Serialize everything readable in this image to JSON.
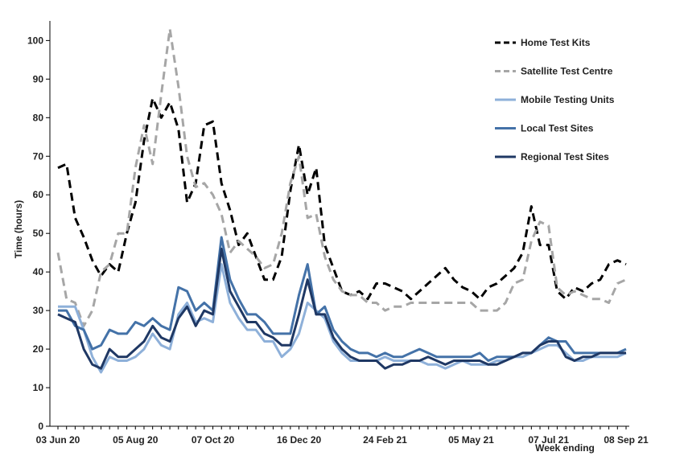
{
  "chart_data": {
    "type": "line",
    "ylabel": "Time (hours)",
    "xlabel": "Week ending",
    "ylim": [
      0,
      103
    ],
    "yticks": [
      0,
      10,
      20,
      30,
      40,
      50,
      60,
      70,
      80,
      90,
      100
    ],
    "x_tick_labels": [
      {
        "index": 0,
        "label": "03 Jun 20"
      },
      {
        "index": 9,
        "label": "05 Aug 20"
      },
      {
        "index": 18,
        "label": "07 Oct 20"
      },
      {
        "index": 28,
        "label": "16 Dec 20"
      },
      {
        "index": 38,
        "label": "24 Feb 21"
      },
      {
        "index": 48,
        "label": "05 May 21"
      },
      {
        "index": 57,
        "label": "07 Jul 21"
      },
      {
        "index": 66,
        "label": "08 Sep 21"
      }
    ],
    "n_points": 67,
    "legend_position": "top-right",
    "grid": false,
    "series": [
      {
        "name": "Home Test Kits",
        "color": "#000000",
        "dash": "dashed",
        "values": [
          67,
          68,
          54,
          49,
          43,
          39,
          42,
          40,
          50,
          58,
          74,
          85,
          80,
          84,
          77,
          58,
          63,
          78,
          79,
          63,
          56,
          47,
          50,
          44,
          38,
          38,
          44,
          61,
          73,
          60,
          67,
          47,
          41,
          35,
          34,
          35,
          33,
          37,
          37,
          36,
          35,
          33,
          35,
          37,
          39,
          41,
          38,
          36,
          35,
          33,
          36,
          37,
          39,
          41,
          45,
          57,
          47,
          47,
          35,
          33,
          36,
          35,
          37,
          38,
          42,
          43,
          42
        ]
      },
      {
        "name": "Satellite Test Centre",
        "color": "#a6a6a6",
        "dash": "dashed",
        "values": [
          45,
          33,
          32,
          26,
          30,
          40,
          42,
          50,
          50,
          67,
          78,
          68,
          86,
          103,
          88,
          70,
          62,
          63,
          60,
          55,
          45,
          48,
          46,
          44,
          41,
          42,
          50,
          63,
          70,
          54,
          55,
          44,
          38,
          35,
          34,
          34,
          32,
          32,
          30,
          31,
          31,
          32,
          32,
          32,
          32,
          32,
          32,
          32,
          32,
          30,
          30,
          30,
          32,
          37,
          38,
          48,
          53,
          52,
          36,
          34,
          35,
          34,
          33,
          33,
          32,
          37,
          38
        ]
      },
      {
        "name": "Mobile Testing Units",
        "color": "#8eb0d9",
        "dash": "solid",
        "values": [
          31,
          31,
          31,
          25,
          18,
          14,
          18,
          17,
          17,
          18,
          20,
          24,
          21,
          20,
          29,
          32,
          27,
          28,
          27,
          42,
          32,
          28,
          25,
          25,
          22,
          22,
          18,
          20,
          24,
          32,
          30,
          28,
          22,
          19,
          17,
          17,
          17,
          17,
          18,
          17,
          17,
          17,
          17,
          16,
          16,
          15,
          16,
          17,
          16,
          16,
          16,
          17,
          17,
          18,
          18,
          19,
          20,
          21,
          21,
          19,
          17,
          17,
          18,
          18,
          18,
          18,
          19
        ]
      },
      {
        "name": "Local Test Sites",
        "color": "#4472a8",
        "dash": "solid",
        "values": [
          30,
          30,
          26,
          25,
          20,
          21,
          25,
          24,
          24,
          27,
          26,
          28,
          26,
          25,
          36,
          35,
          30,
          32,
          30,
          49,
          38,
          33,
          29,
          29,
          27,
          24,
          24,
          24,
          34,
          42,
          29,
          31,
          25,
          22,
          20,
          19,
          19,
          18,
          19,
          18,
          18,
          19,
          20,
          19,
          18,
          18,
          18,
          18,
          18,
          19,
          17,
          18,
          18,
          18,
          19,
          19,
          21,
          23,
          22,
          22,
          19,
          19,
          19,
          19,
          19,
          19,
          20
        ]
      },
      {
        "name": "Regional Test Sites",
        "color": "#1f3864",
        "dash": "solid",
        "values": [
          29,
          28,
          27,
          20,
          16,
          15,
          20,
          18,
          18,
          20,
          22,
          26,
          23,
          22,
          28,
          31,
          26,
          30,
          29,
          46,
          35,
          31,
          27,
          27,
          24,
          23,
          21,
          21,
          29,
          38,
          29,
          29,
          23,
          20,
          18,
          17,
          17,
          17,
          15,
          16,
          16,
          17,
          17,
          18,
          17,
          16,
          17,
          17,
          17,
          17,
          16,
          16,
          17,
          18,
          19,
          19,
          21,
          22,
          22,
          18,
          17,
          18,
          18,
          19,
          19,
          19,
          19
        ]
      }
    ]
  }
}
